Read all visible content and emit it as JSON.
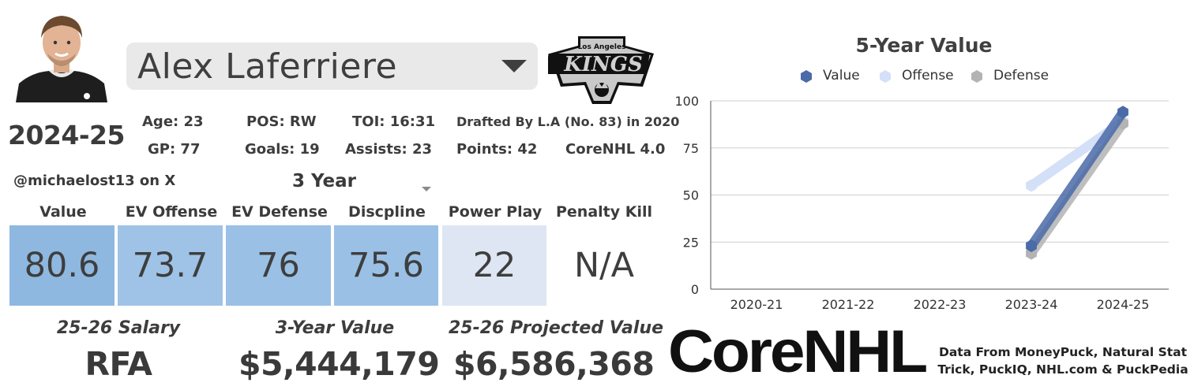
{
  "player": {
    "name": "Alex Laferriere",
    "team_logo_text_top": "Los Angeles",
    "team_logo_text_main": "KINGS"
  },
  "season": "2024-25",
  "stats": {
    "age": "Age: 23",
    "pos": "POS: RW",
    "toi": "TOI: 16:31",
    "drafted": "Drafted By L.A (No. 83) in 2020",
    "gp": "GP: 77",
    "goals": "Goals: 19",
    "assists": "Assists: 23",
    "points": "Points: 42",
    "version": "CoreNHL 4.0"
  },
  "handle": "@michaelost13 on X",
  "year_select": {
    "value": "3 Year"
  },
  "metrics": [
    {
      "label": "Value",
      "value": "80.6",
      "color": "#8fb8e0"
    },
    {
      "label": "EV Offense",
      "value": "73.7",
      "color": "#9ec3e6"
    },
    {
      "label": "EV Defense",
      "value": "76",
      "color": "#9ac0e5"
    },
    {
      "label": "Discpline",
      "value": "75.6",
      "color": "#9ac0e5"
    },
    {
      "label": "Power Play",
      "value": "22",
      "color": "#dde6f2"
    },
    {
      "label": "Penalty Kill",
      "value": "N/A",
      "color": "#ffffff"
    }
  ],
  "contract": {
    "salary_label": "25-26 Salary",
    "salary_value": "RFA",
    "value_label": "3-Year Value",
    "value_value": "$5,444,179",
    "projected_label": "25-26 Projected Value",
    "projected_value": "$6,586,368"
  },
  "brand": {
    "text": "CoreNHL"
  },
  "sources": "Data From MoneyPuck, Natural Stat Trick, PuckIQ, NHL.com & PuckPedia",
  "chart_data": {
    "type": "line",
    "title": "5-Year Value",
    "categories": [
      "2020-21",
      "2021-22",
      "2022-23",
      "2023-24",
      "2024-25"
    ],
    "ylim": [
      0,
      100
    ],
    "yticks": [
      0,
      25,
      50,
      75,
      100
    ],
    "series": [
      {
        "name": "Value",
        "color": "#4a6aa8",
        "values": [
          null,
          null,
          null,
          23,
          94
        ]
      },
      {
        "name": "Offense",
        "color": "#d4e0f7",
        "values": [
          null,
          null,
          null,
          55,
          89
        ]
      },
      {
        "name": "Defense",
        "color": "#b3b3b3",
        "values": [
          null,
          null,
          null,
          19,
          88
        ]
      }
    ]
  }
}
